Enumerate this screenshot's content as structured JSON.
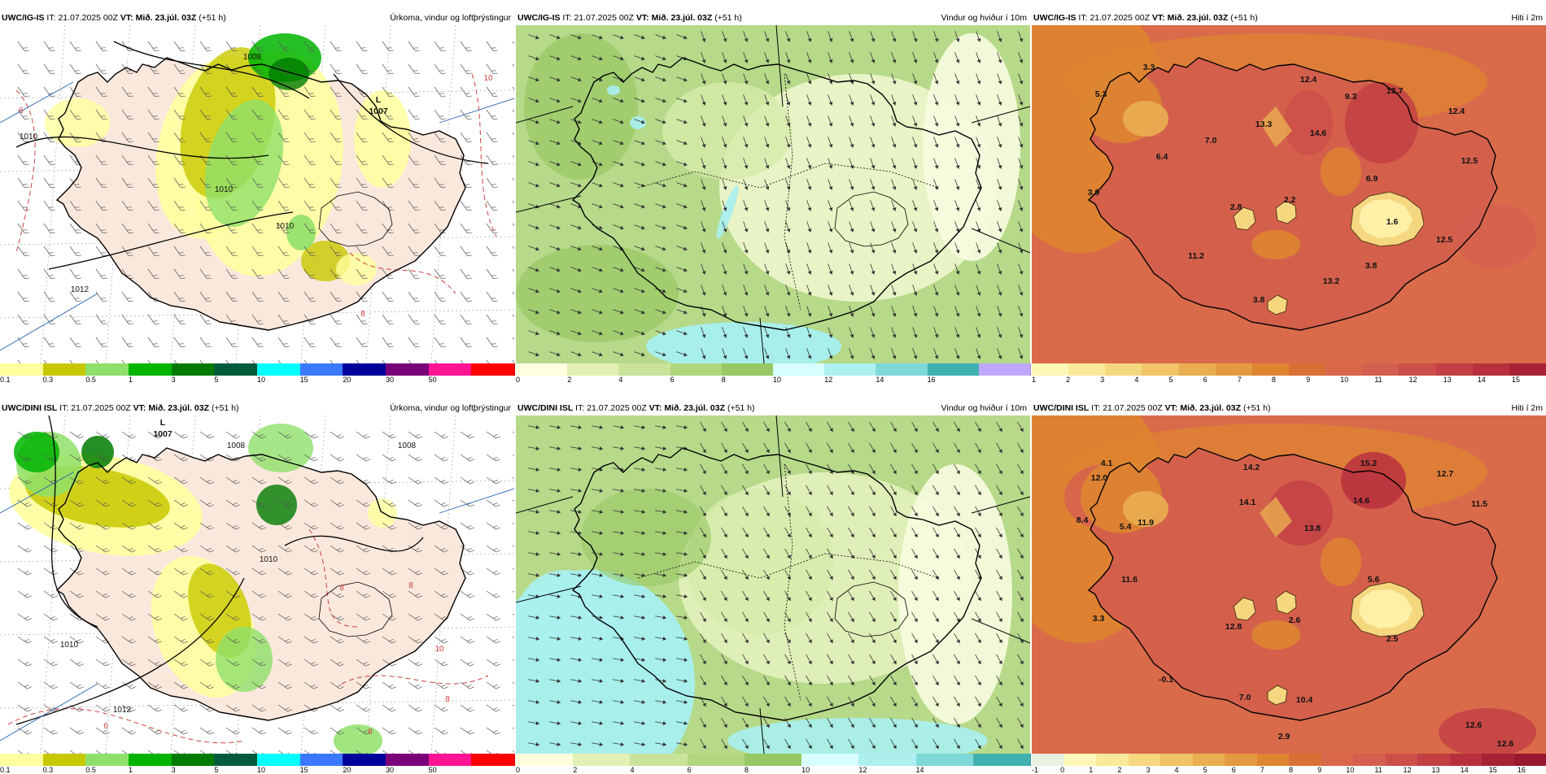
{
  "panels": [
    {
      "id": "p11",
      "model": "UWC/IG-IS",
      "it_label": "IT:",
      "it_value": "21.07.2025 00Z",
      "vt_label": "VT:",
      "vt_value": "Mið. 23.júl. 03Z",
      "lead": "(+51 h)",
      "field": "Úrkoma, vindur og loftþrýstingur",
      "kind": "precip",
      "legend": {
        "colors": [
          "#ffff9e",
          "#c8c800",
          "#8fe06a",
          "#00b400",
          "#007a00",
          "#005c3a",
          "#00ffff",
          "#3a78ff",
          "#00009a",
          "#7a007a",
          "#ff1493",
          "#ff0000"
        ],
        "ticks": [
          "0.1",
          "0.3",
          "0.5",
          "1",
          "3",
          "5",
          "10",
          "15",
          "20",
          "30",
          "50"
        ]
      },
      "isobar_labels": [
        "1008",
        "1010",
        "1010",
        "1012",
        "1010"
      ],
      "low": {
        "letter": "L",
        "value": "1007"
      },
      "temp_labels": [
        "10",
        "6",
        "8"
      ]
    },
    {
      "id": "p12",
      "model": "UWC/IG-IS",
      "it_label": "IT:",
      "it_value": "21.07.2025 00Z",
      "vt_label": "VT:",
      "vt_value": "Mið. 23.júl. 03Z",
      "lead": "(+51 h)",
      "field": "Vindur og hviður í 10m",
      "kind": "wind",
      "legend": {
        "colors": [
          "#ffffe0",
          "#e2f0b5",
          "#c9e49a",
          "#b0d67e",
          "#98c864",
          "#d8ffff",
          "#aef0f0",
          "#7fd8d8",
          "#40b0b0",
          "#c0a8ff"
        ],
        "ticks": [
          "0",
          "2",
          "4",
          "6",
          "8",
          "10",
          "12",
          "14",
          "16"
        ]
      }
    },
    {
      "id": "p13",
      "model": "UWC/IG-IS",
      "it_label": "IT:",
      "it_value": "21.07.2025 00Z",
      "vt_label": "VT:",
      "vt_value": "Mið. 23.júl. 03Z",
      "lead": "(+51 h)",
      "field": "Hiti í 2m",
      "kind": "temp",
      "legend": {
        "colors": [
          "#fff7b8",
          "#fbe99a",
          "#f5d77f",
          "#efc366",
          "#e9ae50",
          "#e49a3e",
          "#de8530",
          "#d87035",
          "#d9674a",
          "#d45f50",
          "#cc4f4a",
          "#c23f43",
          "#b8303d",
          "#a82236"
        ],
        "ticks": [
          "1",
          "2",
          "3",
          "4",
          "5",
          "6",
          "7",
          "8",
          "9",
          "10",
          "11",
          "12",
          "13",
          "14",
          "15"
        ]
      },
      "values": [
        "5.3",
        "3.3",
        "12.4",
        "9.3",
        "13.7",
        "12.4",
        "13.3",
        "14.6",
        "7.0",
        "6.4",
        "12.5",
        "6.9",
        "3.9",
        "2.8",
        "2.2",
        "1.6",
        "12.5",
        "11.2",
        "3.8",
        "13.2",
        "3.8"
      ]
    },
    {
      "id": "p21",
      "model": "UWC/DINI ISL",
      "it_label": "IT:",
      "it_value": "21.07.2025 00Z",
      "vt_label": "VT:",
      "vt_value": "Mið. 23.júl. 03Z",
      "lead": "(+51 h)",
      "field": "Úrkoma, vindur og loftþrýstingur",
      "kind": "precip",
      "legend": {
        "colors": [
          "#ffff9e",
          "#c8c800",
          "#8fe06a",
          "#00b400",
          "#007a00",
          "#005c3a",
          "#00ffff",
          "#3a78ff",
          "#00009a",
          "#7a007a",
          "#ff1493",
          "#ff0000"
        ],
        "ticks": [
          "0.1",
          "0.3",
          "0.5",
          "1",
          "3",
          "5",
          "10",
          "15",
          "20",
          "30",
          "50"
        ]
      },
      "isobar_labels": [
        "1008",
        "1008",
        "1010",
        "1010",
        "1012"
      ],
      "low": {
        "letter": "L",
        "value": "1007"
      },
      "temp_labels": [
        "8",
        "8",
        "10",
        "8",
        "6",
        "8"
      ]
    },
    {
      "id": "p22",
      "model": "UWC/DINI ISL",
      "it_label": "IT:",
      "it_value": "21.07.2025 00Z",
      "vt_label": "VT:",
      "vt_value": "Mið. 23.júl. 03Z",
      "lead": "(+51 h)",
      "field": "Vindur og hviður í 10m",
      "kind": "wind",
      "legend": {
        "colors": [
          "#ffffe0",
          "#e2f0b5",
          "#c9e49a",
          "#b0d67e",
          "#98c864",
          "#d8ffff",
          "#aef0f0",
          "#7fd8d8",
          "#40b0b0"
        ],
        "ticks": [
          "0",
          "2",
          "4",
          "6",
          "8",
          "10",
          "12",
          "14"
        ]
      }
    },
    {
      "id": "p23",
      "model": "UWC/DINI ISL",
      "it_label": "IT:",
      "it_value": "21.07.2025 00Z",
      "vt_label": "VT:",
      "vt_value": "Mið. 23.júl. 03Z",
      "lead": "(+51 h)",
      "field": "Hiti í 2m",
      "kind": "temp",
      "legend": {
        "colors": [
          "#e8f0e0",
          "#fff7b8",
          "#fbe99a",
          "#f5d77f",
          "#efc366",
          "#e9ae50",
          "#e49a3e",
          "#de8530",
          "#d87035",
          "#d9674a",
          "#d45f50",
          "#cc4f4a",
          "#c23f43",
          "#b8303d",
          "#a82236",
          "#98182e"
        ],
        "ticks": [
          "-1",
          "0",
          "1",
          "2",
          "3",
          "4",
          "5",
          "6",
          "7",
          "8",
          "9",
          "10",
          "11",
          "12",
          "13",
          "14",
          "15",
          "16"
        ]
      },
      "values": [
        "4.1",
        "12.0",
        "8.4",
        "5.4",
        "14.2",
        "15.2",
        "12.7",
        "14.1",
        "11.9",
        "14.6",
        "13.8",
        "11.5",
        "11.6",
        "5.6",
        "3.3",
        "12.8",
        "2.6",
        "2.5",
        "-0.1",
        "7.0",
        "10.4",
        "12.6",
        "2.9",
        "12.6"
      ]
    }
  ]
}
